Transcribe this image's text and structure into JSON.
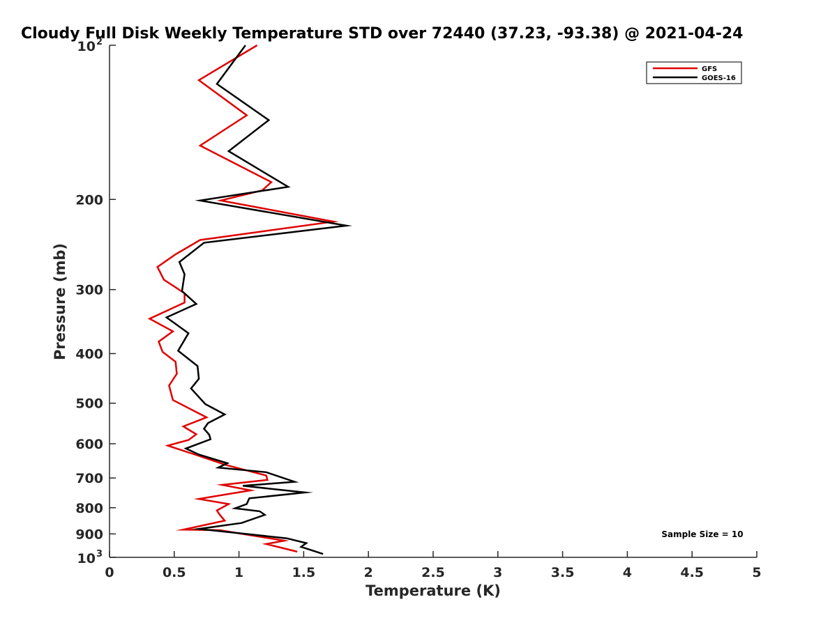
{
  "chart_data": {
    "type": "line",
    "title": "Cloudy Full Disk Weekly Temperature STD over 72440 (37.23, -93.38) @ 2021-04-24",
    "xlabel": "Temperature (K)",
    "ylabel": "Pressure (mb)",
    "xlim": [
      0,
      5
    ],
    "ylim": [
      100,
      1000
    ],
    "y_scale": "log",
    "y_reversed": true,
    "grid": false,
    "legend_position": "top-right",
    "x_ticks": [
      0,
      0.5,
      1,
      1.5,
      2,
      2.5,
      3,
      3.5,
      4,
      4.5,
      5
    ],
    "x_tick_labels": [
      "0",
      "0.5",
      "1",
      "1.5",
      "2",
      "2.5",
      "3",
      "3.5",
      "4",
      "4.5",
      "5"
    ],
    "y_ticks": [
      200,
      300,
      400,
      500,
      600,
      700,
      800,
      900
    ],
    "y_tick_labels": [
      "200",
      "300",
      "400",
      "500",
      "600",
      "700",
      "800",
      "900"
    ],
    "y_end_labels": [
      {
        "value": 100,
        "base": "10",
        "exp": "2"
      },
      {
        "value": 1000,
        "base": "10",
        "exp": "3"
      }
    ],
    "annotation": "Sample Size = 10",
    "series": [
      {
        "name": "GFS",
        "color": "#e00000",
        "points": [
          [
            1.14,
            100
          ],
          [
            0.69,
            117
          ],
          [
            1.06,
            137
          ],
          [
            0.7,
            157
          ],
          [
            1.25,
            185
          ],
          [
            1.18,
            192
          ],
          [
            0.86,
            201
          ],
          [
            1.73,
            221
          ],
          [
            0.7,
            240
          ],
          [
            0.51,
            256
          ],
          [
            0.37,
            271
          ],
          [
            0.42,
            287
          ],
          [
            0.58,
            305
          ],
          [
            0.58,
            318
          ],
          [
            0.31,
            342
          ],
          [
            0.49,
            362
          ],
          [
            0.38,
            379
          ],
          [
            0.41,
            397
          ],
          [
            0.51,
            415
          ],
          [
            0.52,
            438
          ],
          [
            0.46,
            462
          ],
          [
            0.49,
            493
          ],
          [
            0.75,
            533
          ],
          [
            0.57,
            555
          ],
          [
            0.67,
            575
          ],
          [
            0.61,
            590
          ],
          [
            0.45,
            605
          ],
          [
            0.66,
            630
          ],
          [
            0.9,
            660
          ],
          [
            1.21,
            692
          ],
          [
            1.22,
            706
          ],
          [
            0.87,
            722
          ],
          [
            1.09,
            740
          ],
          [
            0.69,
            769
          ],
          [
            0.92,
            787
          ],
          [
            0.83,
            810
          ],
          [
            0.85,
            825
          ],
          [
            0.89,
            848
          ],
          [
            0.57,
            883
          ],
          [
            0.85,
            885
          ],
          [
            1.35,
            928
          ],
          [
            1.21,
            942
          ],
          [
            1.45,
            975
          ]
        ]
      },
      {
        "name": "GOES-16",
        "color": "#000000",
        "points": [
          [
            1.05,
            100
          ],
          [
            0.83,
            119
          ],
          [
            1.23,
            140
          ],
          [
            0.92,
            161
          ],
          [
            1.38,
            189
          ],
          [
            0.7,
            201
          ],
          [
            1.83,
            225
          ],
          [
            0.73,
            243
          ],
          [
            0.54,
            265
          ],
          [
            0.58,
            280
          ],
          [
            0.56,
            302
          ],
          [
            0.67,
            320
          ],
          [
            0.44,
            340
          ],
          [
            0.61,
            365
          ],
          [
            0.53,
            395
          ],
          [
            0.68,
            423
          ],
          [
            0.69,
            448
          ],
          [
            0.63,
            468
          ],
          [
            0.74,
            502
          ],
          [
            0.89,
            526
          ],
          [
            0.76,
            547
          ],
          [
            0.73,
            561
          ],
          [
            0.77,
            576
          ],
          [
            0.78,
            588
          ],
          [
            0.59,
            613
          ],
          [
            0.69,
            630
          ],
          [
            0.91,
            655
          ],
          [
            0.84,
            668
          ],
          [
            1.21,
            682
          ],
          [
            1.43,
            712
          ],
          [
            1.03,
            725
          ],
          [
            1.51,
            747
          ],
          [
            1.08,
            767
          ],
          [
            1.06,
            787
          ],
          [
            0.97,
            802
          ],
          [
            1.16,
            813
          ],
          [
            1.2,
            826
          ],
          [
            1.02,
            857
          ],
          [
            0.69,
            880
          ],
          [
            1.37,
            918
          ],
          [
            1.52,
            938
          ],
          [
            1.48,
            954
          ],
          [
            1.65,
            985
          ]
        ]
      }
    ]
  }
}
